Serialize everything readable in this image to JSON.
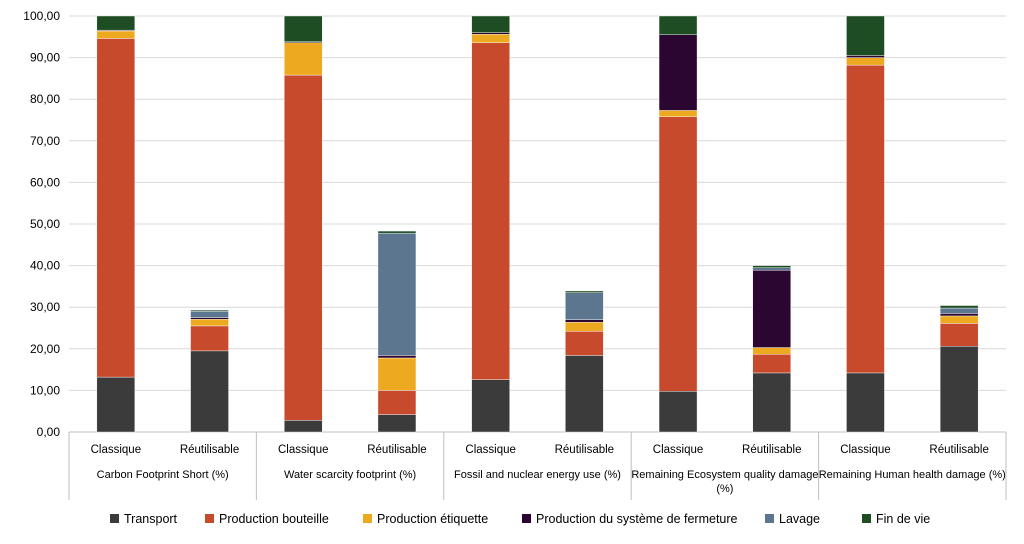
{
  "chart_data": {
    "type": "bar",
    "stacked": true,
    "groups": [
      {
        "label": "Carbon Footprint Short (%)"
      },
      {
        "label": "Water scarcity footprint (%)"
      },
      {
        "label": "Fossil and nuclear energy use (%)"
      },
      {
        "label": "Remaining Ecosystem quality damage (%)"
      },
      {
        "label": "Remaining Human health damage (%)"
      }
    ],
    "categories": [
      "Classique",
      "Réutilisable",
      "Classique",
      "Réutilisable",
      "Classique",
      "Réutilisable",
      "Classique",
      "Réutilisable",
      "Classique",
      "Réutilisable"
    ],
    "series": [
      {
        "name": "Transport",
        "color": "#3b3b3b",
        "values": [
          13.2,
          19.5,
          2.8,
          4.2,
          12.6,
          18.4,
          9.8,
          14.2,
          14.2,
          20.6
        ]
      },
      {
        "name": "Production bouteille",
        "color": "#c84a2d",
        "values": [
          81.4,
          6.0,
          83.0,
          5.8,
          81.0,
          5.8,
          66.0,
          4.5,
          74.0,
          5.5
        ]
      },
      {
        "name": "Production étiquette",
        "color": "#eda91f",
        "values": [
          1.8,
          1.6,
          7.8,
          7.8,
          2.0,
          2.2,
          1.5,
          1.6,
          1.8,
          1.8
        ]
      },
      {
        "name": "Production du système de fermeture",
        "color": "#2a0630",
        "values": [
          0.2,
          0.4,
          0.2,
          0.6,
          0.4,
          0.6,
          18.2,
          18.6,
          0.5,
          0.6
        ]
      },
      {
        "name": "Lavage",
        "color": "#5d768f",
        "values": [
          0.0,
          1.5,
          0.0,
          29.4,
          0.0,
          6.5,
          0.0,
          0.6,
          0.0,
          1.3
        ]
      },
      {
        "name": "Fin de vie",
        "color": "#1e4d24",
        "values": [
          3.4,
          0.3,
          6.2,
          0.5,
          4.0,
          0.4,
          4.5,
          0.5,
          9.5,
          0.6
        ]
      }
    ],
    "y_ticks": [
      "0,00",
      "10,00",
      "20,00",
      "30,00",
      "40,00",
      "50,00",
      "60,00",
      "70,00",
      "80,00",
      "90,00",
      "100,00"
    ],
    "ylim": [
      0,
      100
    ],
    "grid": true,
    "legend_position": "bottom"
  }
}
